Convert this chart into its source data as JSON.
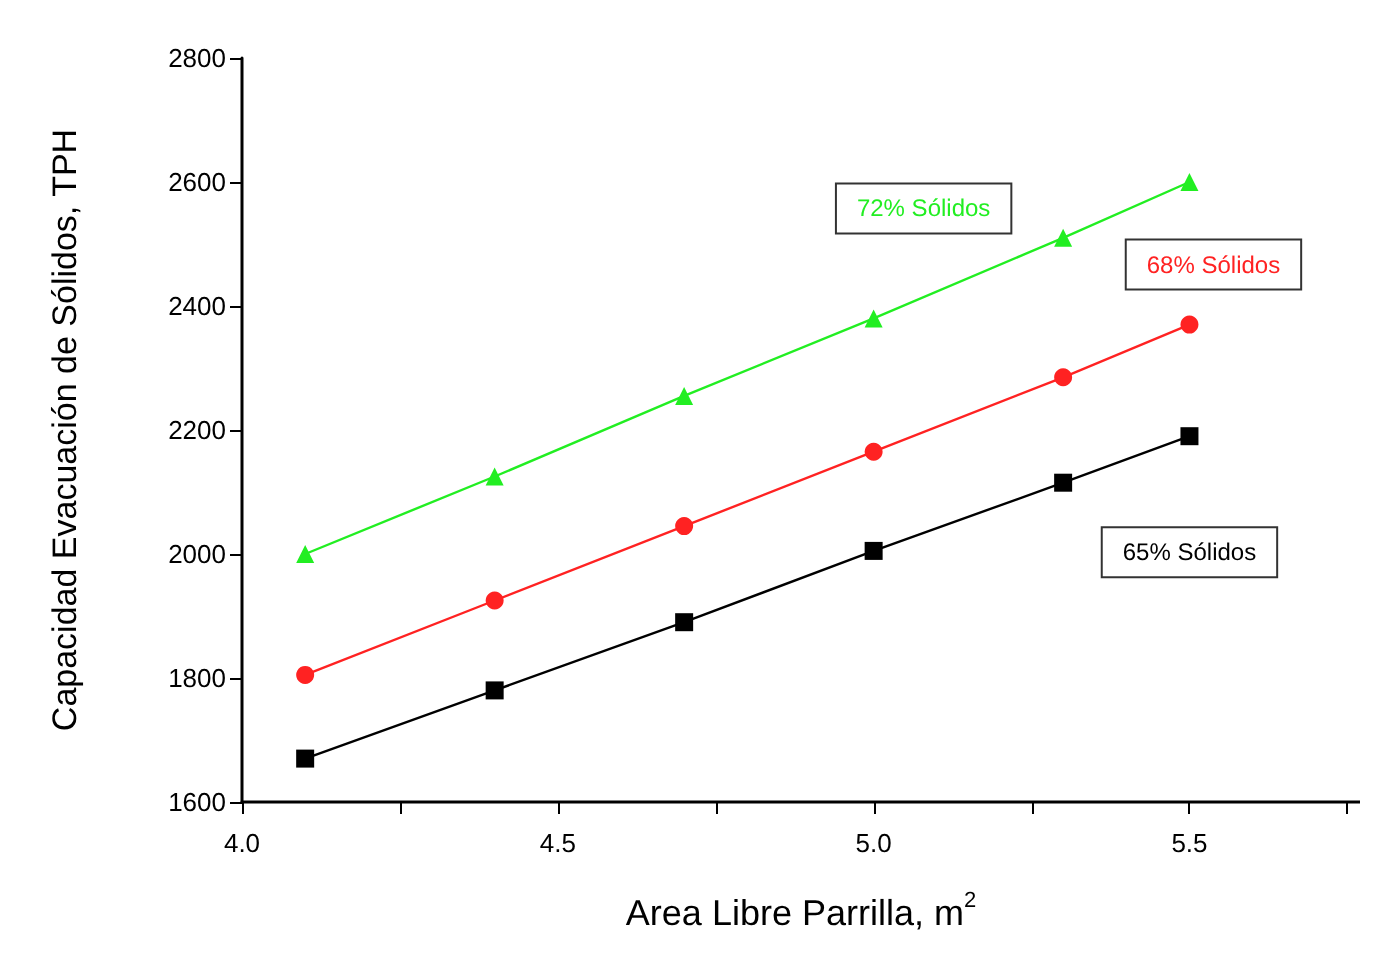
{
  "chart_data": {
    "type": "line",
    "xlabel": "Area Libre Parrilla, m$^{2}$",
    "ylabel": "Capacidad Evacuación de Sólidos, TPH",
    "x": [
      4.1,
      4.4,
      4.7,
      5.0,
      5.3,
      5.5
    ],
    "series": [
      {
        "name": "72% Sólidos",
        "color": "#22ee22",
        "marker": "triangle",
        "values": [
          2000,
          2125,
          2255,
          2380,
          2510,
          2600
        ]
      },
      {
        "name": "68% Sólidos",
        "color": "#ff2222",
        "marker": "circle",
        "values": [
          1805,
          1925,
          2045,
          2165,
          2285,
          2370
        ]
      },
      {
        "name": "65% Sólidos",
        "color": "#000000",
        "marker": "square",
        "values": [
          1670,
          1780,
          1890,
          2005,
          2115,
          2190
        ]
      }
    ],
    "xlim": [
      4.0,
      5.77
    ],
    "xticks": [
      {
        "value": 4.0,
        "label": "4.0"
      },
      {
        "value": 4.25,
        "label": null
      },
      {
        "value": 4.5,
        "label": "4.5"
      },
      {
        "value": 4.75,
        "label": null
      },
      {
        "value": 5.0,
        "label": "5.0"
      },
      {
        "value": 5.25,
        "label": null
      },
      {
        "value": 5.5,
        "label": "5.5"
      },
      {
        "value": 5.75,
        "label": null
      }
    ],
    "ylim": [
      1600,
      2800
    ],
    "yticks": [
      1600,
      1800,
      2000,
      2200,
      2400,
      2600,
      2800
    ],
    "grid": false,
    "legend": false
  }
}
